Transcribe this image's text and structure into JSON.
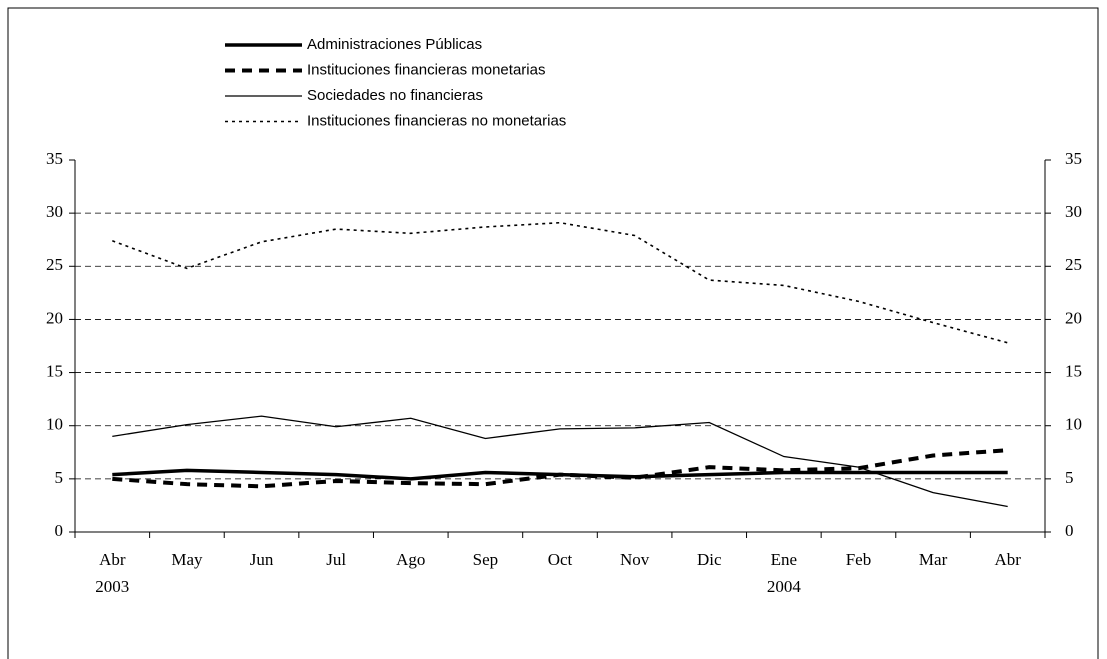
{
  "chart_data": {
    "type": "line",
    "categories": [
      "Abr",
      "May",
      "Jun",
      "Jul",
      "Ago",
      "Sep",
      "Oct",
      "Nov",
      "Dic",
      "Ene",
      "Feb",
      "Mar",
      "Abr"
    ],
    "year_labels": [
      "2003",
      null,
      null,
      null,
      null,
      null,
      null,
      null,
      null,
      "2004",
      null,
      null,
      null
    ],
    "ylim": [
      0,
      35
    ],
    "yticks": [
      0,
      5,
      10,
      15,
      20,
      25,
      30,
      35
    ],
    "y2lim": [
      0,
      35
    ],
    "y2ticks": [
      0,
      5,
      10,
      15,
      20,
      25,
      30,
      35
    ],
    "grid": true,
    "series": [
      {
        "name": "Administraciones Públicas",
        "color": "#000000",
        "style": "solid-thick",
        "values": [
          5.4,
          5.8,
          5.6,
          5.4,
          5.0,
          5.6,
          5.4,
          5.2,
          5.4,
          5.6,
          5.6,
          5.6,
          5.6
        ]
      },
      {
        "name": "Instituciones financieras monetarias",
        "color": "#000000",
        "style": "dashed-thick",
        "values": [
          5.0,
          4.5,
          4.3,
          4.8,
          4.6,
          4.5,
          5.4,
          5.1,
          6.1,
          5.8,
          6.0,
          7.2,
          7.7
        ]
      },
      {
        "name": "Sociedades no financieras",
        "color": "#000000",
        "style": "solid-thin",
        "values": [
          9.0,
          10.1,
          10.9,
          9.9,
          10.7,
          8.8,
          9.7,
          9.8,
          10.3,
          7.1,
          6.1,
          3.7,
          2.4
        ]
      },
      {
        "name": "Instituciones financieras no monetarias",
        "color": "#000000",
        "style": "dotted",
        "values": [
          27.4,
          24.8,
          27.3,
          28.5,
          28.1,
          28.7,
          29.1,
          27.9,
          23.7,
          23.2,
          21.7,
          19.7,
          17.8
        ]
      }
    ]
  }
}
